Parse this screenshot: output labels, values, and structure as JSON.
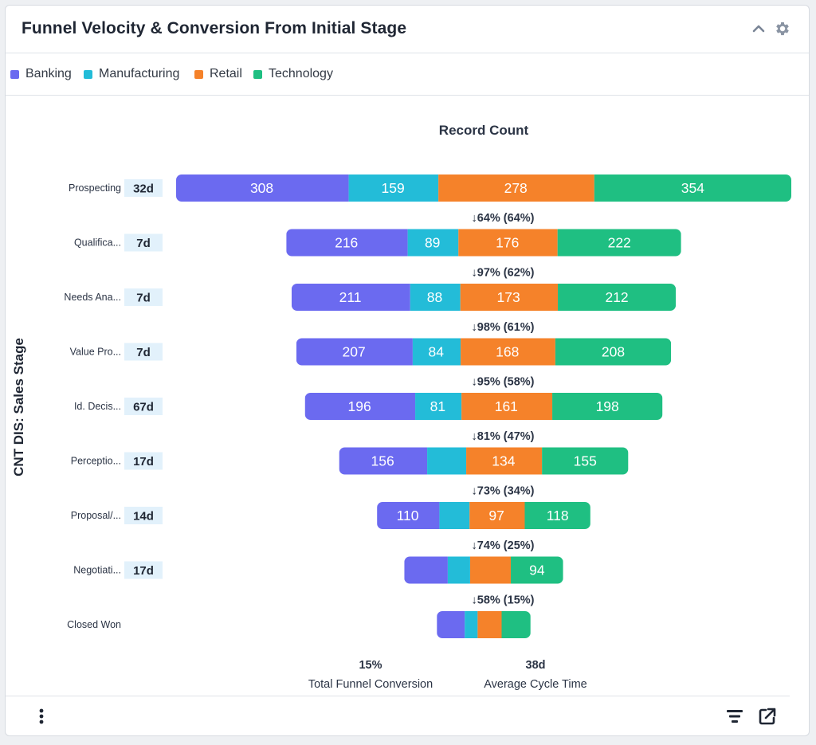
{
  "header": {
    "title": "Funnel Velocity & Conversion From Initial Stage",
    "collapse_icon": "chevron-up-icon",
    "settings_icon": "gear-icon"
  },
  "legend": {
    "items": [
      {
        "label": "Banking",
        "color": "#6b6af0"
      },
      {
        "label": "Manufacturing",
        "color": "#23bcd8"
      },
      {
        "label": "Retail",
        "color": "#f5822a"
      },
      {
        "label": "Technology",
        "color": "#1fbf82"
      }
    ]
  },
  "chart_data": {
    "type": "bar",
    "title": "Record Count",
    "ylabel": "CNT DIS: Sales Stage",
    "categories": [
      "Prospecting",
      "Qualifica...",
      "Needs Ana...",
      "Value Pro...",
      "Id. Decis...",
      "Perceptio...",
      "Proposal/...",
      "Negotiati...",
      "Closed Won"
    ],
    "durations": [
      "32d",
      "7d",
      "7d",
      "7d",
      "67d",
      "17d",
      "14d",
      "17d",
      ""
    ],
    "series": [
      {
        "name": "Banking",
        "color": "#6b6af0",
        "values": [
          308,
          216,
          211,
          207,
          196,
          156,
          110,
          76,
          48
        ]
      },
      {
        "name": "Manufacturing",
        "color": "#23bcd8",
        "values": [
          159,
          89,
          88,
          84,
          81,
          68,
          52,
          38,
          21
        ]
      },
      {
        "name": "Retail",
        "color": "#f5822a",
        "values": [
          278,
          176,
          173,
          168,
          161,
          134,
          97,
          71,
          41
        ]
      },
      {
        "name": "Technology",
        "color": "#1fbf82",
        "values": [
          354,
          222,
          212,
          208,
          198,
          155,
          118,
          94,
          52
        ]
      }
    ],
    "value_labels": [
      [
        "308",
        "159",
        "278",
        "354"
      ],
      [
        "216",
        "89",
        "176",
        "222"
      ],
      [
        "211",
        "88",
        "173",
        "212"
      ],
      [
        "207",
        "84",
        "168",
        "208"
      ],
      [
        "196",
        "81",
        "161",
        "198"
      ],
      [
        "156",
        "",
        "134",
        "155"
      ],
      [
        "110",
        "",
        "97",
        "118"
      ],
      [
        "",
        "",
        "",
        "94"
      ],
      [
        "",
        "",
        "",
        ""
      ]
    ],
    "conversions": [
      "64%  (64%)",
      "97%  (62%)",
      "98%  (61%)",
      "95%  (58%)",
      "81%  (47%)",
      "73%  (34%)",
      "74%  (25%)",
      "58%  (15%)"
    ],
    "conversion_arrow": "↓",
    "summary": [
      {
        "value": "15%",
        "label": "Total Funnel Conversion"
      },
      {
        "value": "38d",
        "label": "Average Cycle Time"
      }
    ]
  },
  "footer": {
    "menu_icon": "more-vertical-icon",
    "filter_icon": "filter-lines-icon",
    "export_icon": "external-link-icon"
  }
}
